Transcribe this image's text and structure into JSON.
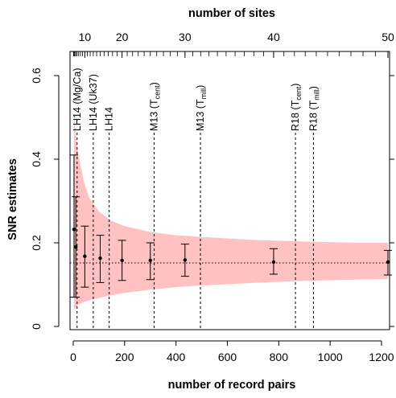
{
  "chart_data": {
    "type": "scatter",
    "xlabel": "number of record pairs",
    "ylabel": "SNR estimates",
    "x2label": "number of sites",
    "xlim": [
      -10,
      1230
    ],
    "ylim": [
      0,
      0.6
    ],
    "x_ticks": [
      0,
      200,
      400,
      600,
      800,
      1000,
      1200
    ],
    "y_ticks": [
      0,
      0.2,
      0.4,
      0.6
    ],
    "top_ticks": [
      {
        "sites": 10,
        "pairs": 45
      },
      {
        "sites": 20,
        "pairs": 190
      },
      {
        "sites": 30,
        "pairs": 435
      },
      {
        "sites": 40,
        "pairs": 780
      },
      {
        "sites": 50,
        "pairs": 1225
      }
    ],
    "top_minor_pairs": [
      1,
      3,
      6,
      10,
      15,
      21,
      28,
      36,
      55,
      66,
      78,
      91,
      105,
      120,
      136,
      153,
      171,
      210,
      231,
      253,
      276,
      300,
      325,
      351,
      378,
      406,
      465,
      496,
      528,
      561,
      595,
      630,
      666,
      703,
      741,
      820,
      861,
      903,
      946,
      990,
      1035,
      1081,
      1128,
      1176
    ],
    "reference_line_y": 0.152,
    "band": {
      "x": [
        3,
        10,
        20,
        40,
        60,
        100,
        150,
        200,
        300,
        400,
        500,
        700,
        900,
        1100,
        1225
      ],
      "lower": [
        0.04,
        0.045,
        0.052,
        0.058,
        0.062,
        0.068,
        0.075,
        0.08,
        0.088,
        0.094,
        0.098,
        0.104,
        0.109,
        0.112,
        0.114
      ],
      "upper": [
        0.5,
        0.46,
        0.41,
        0.35,
        0.31,
        0.275,
        0.252,
        0.24,
        0.226,
        0.218,
        0.214,
        0.207,
        0.203,
        0.2,
        0.2
      ]
    },
    "points": [
      {
        "x": 3,
        "y": 0.232,
        "lo": 0.07,
        "hi": 0.41
      },
      {
        "x": 10,
        "y": 0.19,
        "lo": 0.07,
        "hi": 0.31
      },
      {
        "x": 45,
        "y": 0.168,
        "lo": 0.094,
        "hi": 0.24
      },
      {
        "x": 105,
        "y": 0.163,
        "lo": 0.105,
        "hi": 0.218
      },
      {
        "x": 190,
        "y": 0.158,
        "lo": 0.11,
        "hi": 0.206
      },
      {
        "x": 300,
        "y": 0.158,
        "lo": 0.112,
        "hi": 0.2
      },
      {
        "x": 435,
        "y": 0.159,
        "lo": 0.12,
        "hi": 0.197
      },
      {
        "x": 780,
        "y": 0.154,
        "lo": 0.125,
        "hi": 0.186
      },
      {
        "x": 1225,
        "y": 0.154,
        "lo": 0.123,
        "hi": 0.182
      }
    ],
    "annotations": [
      {
        "x": 15,
        "label": "LH14 (Mg/Ca)"
      },
      {
        "x": 78,
        "label": "LH14 (Uk37)"
      },
      {
        "x": 140,
        "label": "LH14"
      },
      {
        "x": 315,
        "label": "M13 (T",
        "sub": "cent",
        "tail": ")"
      },
      {
        "x": 495,
        "label": "M13 (T",
        "sub": "mill",
        "tail": ")"
      },
      {
        "x": 865,
        "label": "R18 (T",
        "sub": "cent",
        "tail": ")"
      },
      {
        "x": 935,
        "label": "R18 (T",
        "sub": "mill",
        "tail": ")"
      }
    ],
    "colors": {
      "band": "#ffc1c1",
      "line": "#000000"
    }
  }
}
